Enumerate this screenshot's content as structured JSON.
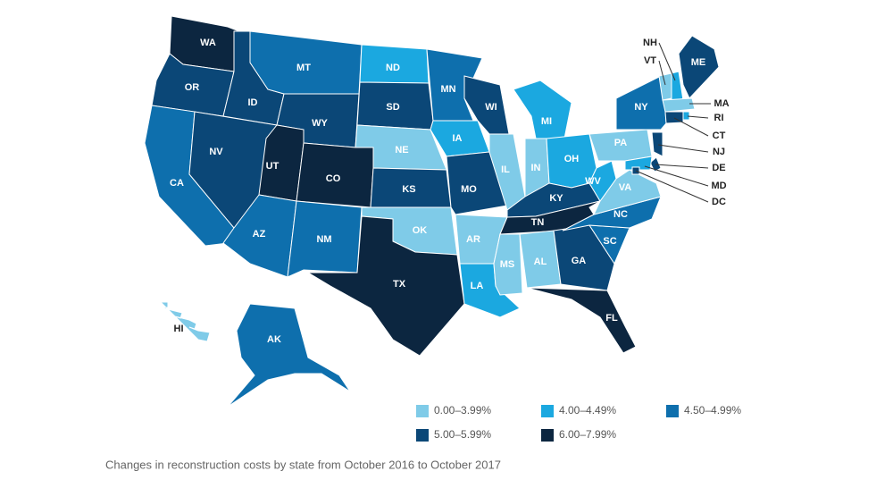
{
  "map": {
    "caption": "Changes in reconstruction costs by state from October 2016 to October 2017",
    "legend": [
      {
        "label": "0.00–3.99%",
        "color": "#7fcbe8"
      },
      {
        "label": "4.00–4.49%",
        "color": "#1ba8e0"
      },
      {
        "label": "4.50–4.99%",
        "color": "#0e6fad"
      },
      {
        "label": "5.00–5.99%",
        "color": "#0b4777"
      },
      {
        "label": "6.00–7.99%",
        "color": "#0c2640"
      }
    ],
    "states": [
      {
        "abbr": "WA",
        "bin": 4
      },
      {
        "abbr": "OR",
        "bin": 3
      },
      {
        "abbr": "CA",
        "bin": 2
      },
      {
        "abbr": "ID",
        "bin": 3
      },
      {
        "abbr": "NV",
        "bin": 3
      },
      {
        "abbr": "MT",
        "bin": 2
      },
      {
        "abbr": "WY",
        "bin": 3
      },
      {
        "abbr": "UT",
        "bin": 4
      },
      {
        "abbr": "CO",
        "bin": 4
      },
      {
        "abbr": "AZ",
        "bin": 2
      },
      {
        "abbr": "NM",
        "bin": 2
      },
      {
        "abbr": "ND",
        "bin": 1
      },
      {
        "abbr": "SD",
        "bin": 3
      },
      {
        "abbr": "NE",
        "bin": 0
      },
      {
        "abbr": "KS",
        "bin": 3
      },
      {
        "abbr": "OK",
        "bin": 0
      },
      {
        "abbr": "TX",
        "bin": 4
      },
      {
        "abbr": "MN",
        "bin": 2
      },
      {
        "abbr": "IA",
        "bin": 1
      },
      {
        "abbr": "MO",
        "bin": 3
      },
      {
        "abbr": "AR",
        "bin": 0
      },
      {
        "abbr": "LA",
        "bin": 1
      },
      {
        "abbr": "WI",
        "bin": 3
      },
      {
        "abbr": "IL",
        "bin": 0
      },
      {
        "abbr": "MI",
        "bin": 1
      },
      {
        "abbr": "IN",
        "bin": 0
      },
      {
        "abbr": "OH",
        "bin": 1
      },
      {
        "abbr": "KY",
        "bin": 3
      },
      {
        "abbr": "TN",
        "bin": 4
      },
      {
        "abbr": "MS",
        "bin": 0
      },
      {
        "abbr": "AL",
        "bin": 0
      },
      {
        "abbr": "GA",
        "bin": 3
      },
      {
        "abbr": "FL",
        "bin": 4
      },
      {
        "abbr": "SC",
        "bin": 2
      },
      {
        "abbr": "NC",
        "bin": 2
      },
      {
        "abbr": "VA",
        "bin": 0
      },
      {
        "abbr": "WV",
        "bin": 1
      },
      {
        "abbr": "PA",
        "bin": 0
      },
      {
        "abbr": "NY",
        "bin": 2
      },
      {
        "abbr": "VT",
        "bin": 0
      },
      {
        "abbr": "NH",
        "bin": 1
      },
      {
        "abbr": "ME",
        "bin": 3
      },
      {
        "abbr": "MA",
        "bin": 0
      },
      {
        "abbr": "RI",
        "bin": 1
      },
      {
        "abbr": "CT",
        "bin": 3
      },
      {
        "abbr": "NJ",
        "bin": 3
      },
      {
        "abbr": "DE",
        "bin": 3
      },
      {
        "abbr": "MD",
        "bin": 1
      },
      {
        "abbr": "DC",
        "bin": 3
      },
      {
        "abbr": "AK",
        "bin": 2
      },
      {
        "abbr": "HI",
        "bin": 0
      }
    ]
  }
}
